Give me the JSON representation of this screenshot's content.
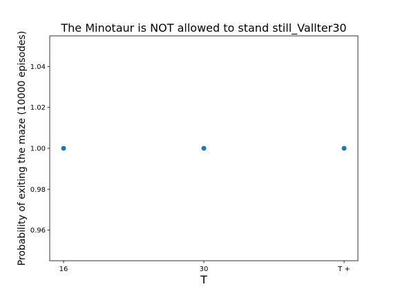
{
  "chart_data": {
    "type": "scatter",
    "title": "The Minotaur is NOT allowed to stand still_Vallter30",
    "xlabel": "T",
    "ylabel": "Probability of exiting the maze (10000 episodes)",
    "categories": [
      "16",
      "30",
      "T +"
    ],
    "values": [
      1.0,
      1.0,
      1.0
    ],
    "ylim": [
      0.945,
      1.055
    ],
    "yticks": [
      "0.96",
      "0.98",
      "1.00",
      "1.02",
      "1.04"
    ],
    "grid": false,
    "legend": "none",
    "colors": {
      "marker": "#1f77b4",
      "axes": "#000000",
      "background": "#ffffff"
    }
  }
}
